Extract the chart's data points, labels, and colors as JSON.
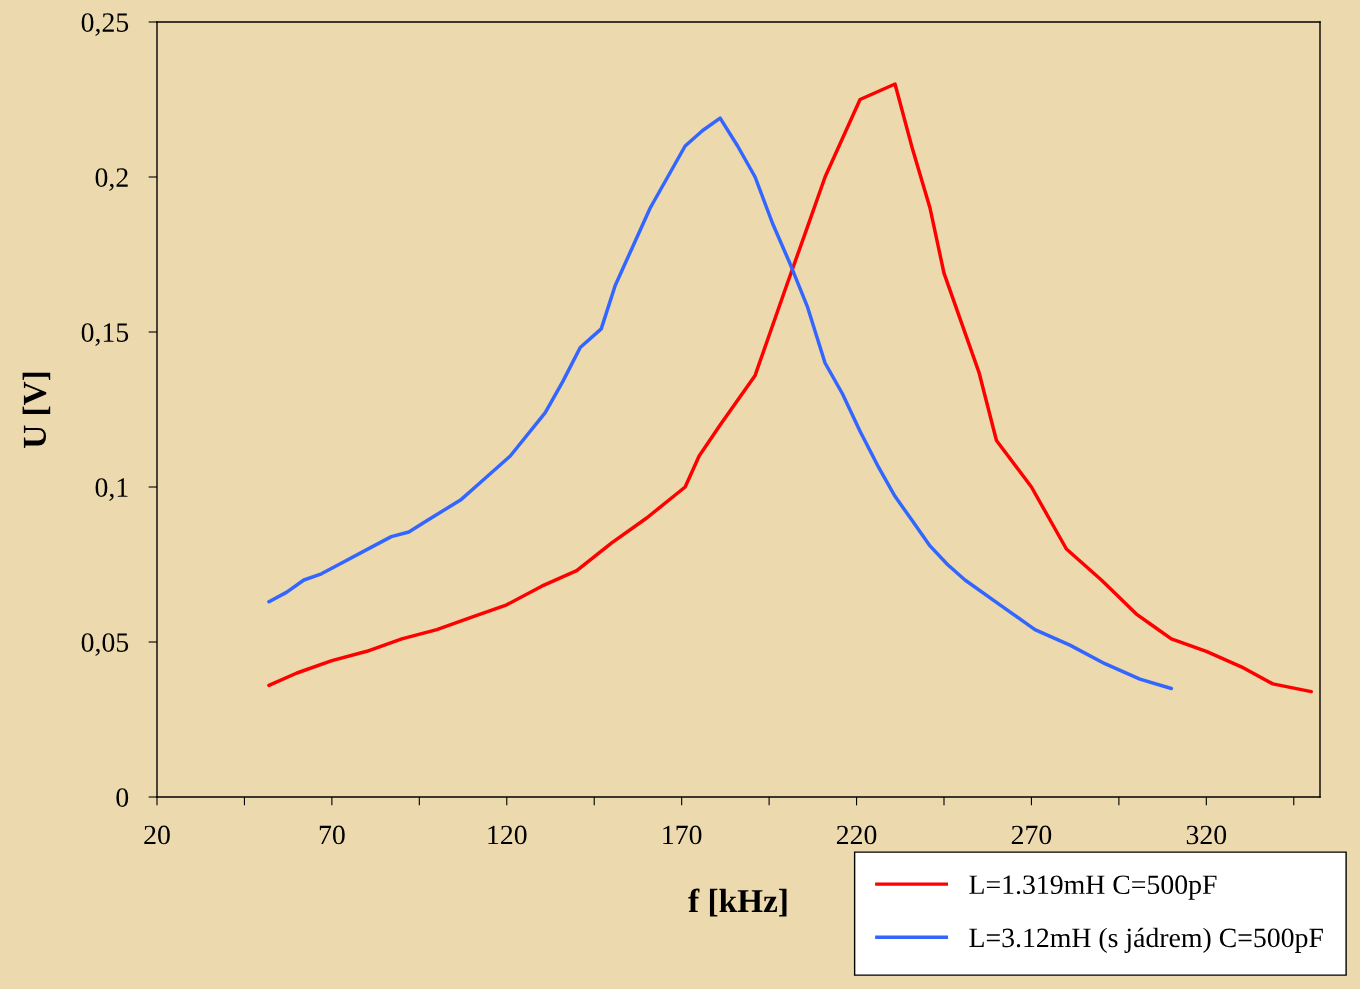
{
  "chart_data": {
    "type": "line",
    "xlabel": "f [kHz]",
    "ylabel": "U [V]",
    "xlim": [
      20,
      352.5
    ],
    "ylim": [
      0,
      0.25
    ],
    "xticks": [
      20,
      {
        "value": 45,
        "label": null
      },
      70,
      {
        "value": 95,
        "label": null
      },
      120,
      {
        "value": 145,
        "label": null
      },
      170,
      {
        "value": 195,
        "label": null
      },
      220,
      {
        "value": 245,
        "label": null
      },
      270,
      {
        "value": 295,
        "label": null
      },
      320,
      {
        "value": 345,
        "label": null
      }
    ],
    "yticks": [
      0,
      {
        "value": 0.05,
        "label": "0,05"
      },
      {
        "value": 0.1,
        "label": "0,1"
      },
      {
        "value": 0.15,
        "label": "0,15"
      },
      {
        "value": 0.2,
        "label": "0,2"
      },
      {
        "value": 0.25,
        "label": "0,25"
      }
    ],
    "grid": false,
    "legend": "bottom right",
    "marker": "none",
    "line_style": "solid",
    "series": [
      {
        "name": "L=1.319mH C=500pF",
        "color": "#ff0000",
        "x": [
          52,
          60,
          70,
          80,
          90,
          100,
          110,
          120,
          130,
          140,
          150,
          160,
          171,
          175,
          181,
          191,
          200,
          206,
          211,
          221,
          231,
          236,
          241,
          245,
          255,
          260,
          270,
          275,
          280,
          290,
          300,
          305,
          310,
          320,
          330,
          339,
          350
        ],
        "values": [
          0.036,
          0.04,
          0.044,
          0.047,
          0.051,
          0.054,
          0.058,
          0.062,
          0.068,
          0.073,
          0.082,
          0.09,
          0.1,
          0.11,
          0.12,
          0.136,
          0.165,
          0.184,
          0.2,
          0.225,
          0.23,
          0.209,
          0.19,
          0.169,
          0.137,
          0.115,
          0.1,
          0.09,
          0.08,
          0.07,
          0.059,
          0.055,
          0.051,
          0.047,
          0.042,
          0.0365,
          0.034
        ]
      },
      {
        "name": "L=3.12mH (s jádrem) C=500pF",
        "color": "#3366ff",
        "x": [
          52,
          57,
          62,
          67,
          72,
          82,
          87,
          92,
          97,
          107,
          111,
          121,
          131,
          136,
          141,
          147,
          151,
          161,
          171,
          176,
          181,
          186,
          191,
          196,
          201,
          206,
          211,
          216,
          221,
          226,
          231,
          236,
          241,
          246,
          251,
          261,
          271,
          281,
          291,
          301,
          310
        ],
        "values": [
          0.063,
          0.066,
          0.07,
          0.072,
          0.075,
          0.081,
          0.084,
          0.0855,
          0.089,
          0.096,
          0.1,
          0.11,
          0.124,
          0.134,
          0.145,
          0.151,
          0.165,
          0.19,
          0.21,
          0.215,
          0.219,
          0.21,
          0.2,
          0.185,
          0.172,
          0.158,
          0.14,
          0.13,
          0.118,
          0.107,
          0.097,
          0.089,
          0.081,
          0.075,
          0.07,
          0.062,
          0.054,
          0.049,
          0.043,
          0.038,
          0.035
        ]
      }
    ]
  }
}
